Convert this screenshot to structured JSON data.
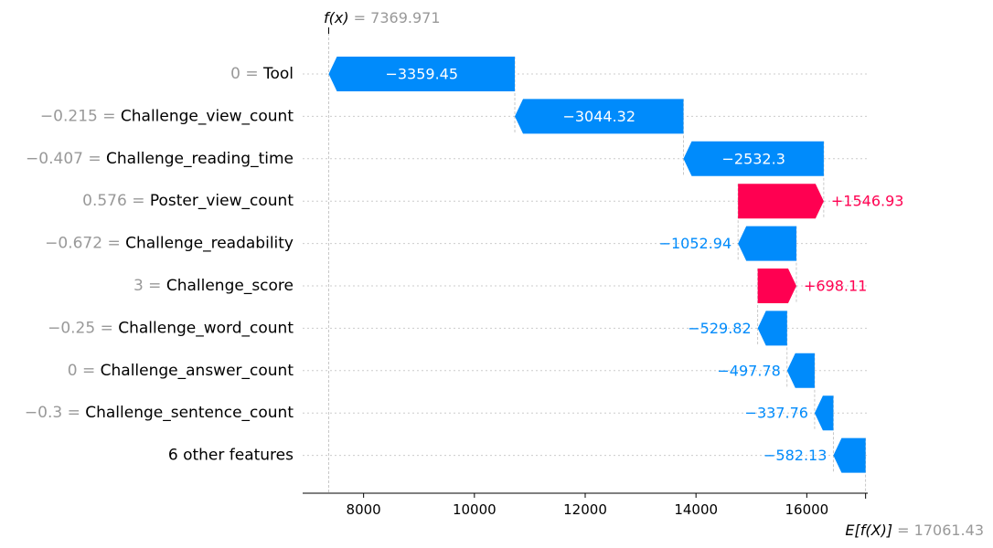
{
  "chart_data": {
    "type": "waterfall",
    "fx_label": "f(x)",
    "fx_value": "7369.971",
    "fx": 7369.971,
    "efx_label": "E[f(X)]",
    "efx_value": "17061.43",
    "efx": 17061.43,
    "xlim": [
      6900,
      17100
    ],
    "xticks": [
      8000,
      10000,
      12000,
      14000,
      16000
    ],
    "xtick_labels": [
      "8000",
      "10000",
      "12000",
      "14000",
      "16000"
    ],
    "colors": {
      "negative": "#008bfb",
      "positive": "#ff0051"
    },
    "features": [
      {
        "value": "0",
        "name": "Tool",
        "contribution": -3359.45,
        "label": "−3359.45"
      },
      {
        "value": "−0.215",
        "name": "Challenge_view_count",
        "contribution": -3044.32,
        "label": "−3044.32"
      },
      {
        "value": "−0.407",
        "name": "Challenge_reading_time",
        "contribution": -2532.3,
        "label": "−2532.3"
      },
      {
        "value": "0.576",
        "name": "Poster_view_count",
        "contribution": 1546.93,
        "label": "+1546.93"
      },
      {
        "value": "−0.672",
        "name": "Challenge_readability",
        "contribution": -1052.94,
        "label": "−1052.94"
      },
      {
        "value": "3",
        "name": "Challenge_score",
        "contribution": 698.11,
        "label": "+698.11"
      },
      {
        "value": "−0.25",
        "name": "Challenge_word_count",
        "contribution": -529.82,
        "label": "−529.82"
      },
      {
        "value": "0",
        "name": "Challenge_answer_count",
        "contribution": -497.78,
        "label": "−497.78"
      },
      {
        "value": "−0.3",
        "name": "Challenge_sentence_count",
        "contribution": -337.76,
        "label": "−337.76"
      },
      {
        "value": "",
        "name": "6 other features",
        "contribution": -582.13,
        "label": "−582.13"
      }
    ]
  }
}
